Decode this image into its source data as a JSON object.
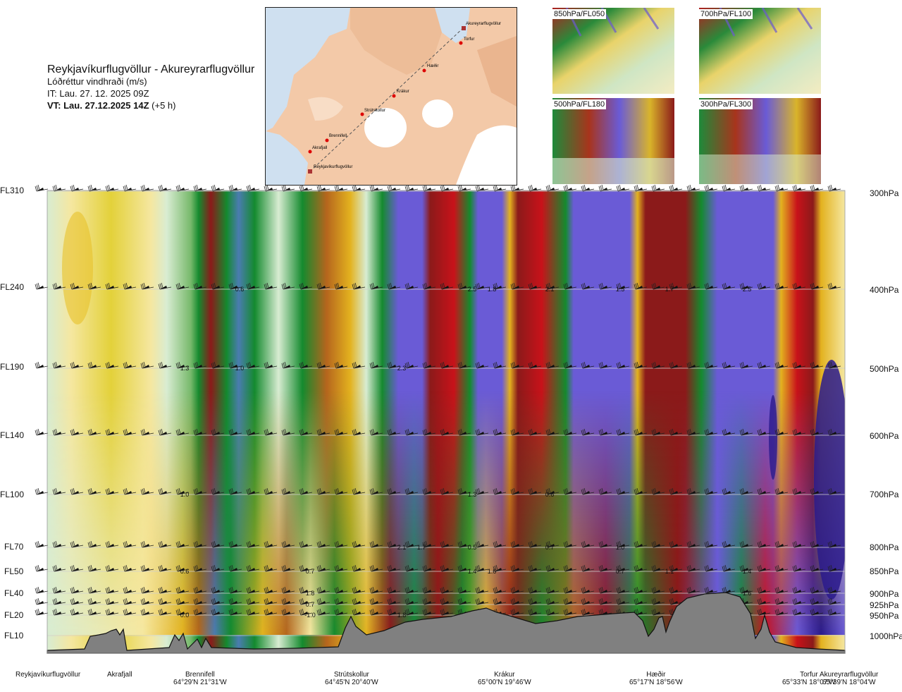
{
  "header": {
    "route_title": "Reykjavíkurflugvöllur - Akureyrarflugvöllur",
    "variable": "Lóðréttur vindhraði (m/s)",
    "issue_time": "IT: Lau. 27. 12. 2025 09Z",
    "valid_prefix": "VT: Lau. 27.12.2025 14Z",
    "valid_suffix": "(+5 h)"
  },
  "map": {
    "waypoints": [
      "Akureyrarflugvöllur",
      "Torfur",
      "Hæðir",
      "Krákur",
      "Strútskollur",
      "Brennifell",
      "Akrafjall",
      "Reykjavíkurflugvöllur"
    ]
  },
  "thumbnails": [
    {
      "label": "850hPa/FL050"
    },
    {
      "label": "700hPa/FL100"
    },
    {
      "label": "500hPa/FL180"
    },
    {
      "label": "300hPa/FL300"
    }
  ],
  "left_axis": [
    "FL310",
    "FL240",
    "FL190",
    "FL140",
    "FL100",
    "FL70",
    "FL50",
    "FL40",
    "FL20",
    "FL10"
  ],
  "right_axis": [
    "300hPa",
    "400hPa",
    "500hPa",
    "600hPa",
    "700hPa",
    "800hPa",
    "850hPa",
    "900hPa",
    "925hPa",
    "950hPa",
    "1000hPa"
  ],
  "bottom_axis": [
    {
      "name": "Reykjavíkurflugvöllur",
      "coord": ""
    },
    {
      "name": "Akrafjall",
      "coord": ""
    },
    {
      "name": "Brennifell",
      "coord": "64°29'N 21°31'W"
    },
    {
      "name": "Strútskollur",
      "coord": "64°45'N 20°40'W"
    },
    {
      "name": "Krákur",
      "coord": "65°00'N 19°46'W"
    },
    {
      "name": "Hæðir",
      "coord": "65°17'N 18°56'W"
    },
    {
      "name": "Torfur",
      "coord": "65°33'N 18°07'W"
    },
    {
      "name": "Akureyrarflugvöllur",
      "coord": "65°39'N 18°04'W"
    }
  ],
  "colors": {
    "strong_up": "#8b1a1a",
    "up": "#c8121a",
    "weak_up": "#b5651d",
    "slight_up": "#e3b21f",
    "neutral_pos": "#f5e7a0",
    "neutral_neg": "#d8ecd2",
    "slight_down": "#77b96b",
    "down": "#148a2e",
    "strong_down": "#4a7cb0",
    "very_down": "#6a5bd6",
    "extreme_down": "#2a1a8c",
    "terrain": "#808080"
  },
  "chart_data": {
    "type": "heatmap",
    "title": "Reykjavíkurflugvöllur - Akureyrarflugvöllur",
    "variable": "Lóðréttur vindhraði (m/s)",
    "x_categories": [
      "Reykjavíkurflugvöllur",
      "Akrafjall",
      "Brennifell",
      "Strútskollur",
      "Krákur",
      "Hæðir",
      "Torfur",
      "Akureyrarflugvöllur"
    ],
    "y_levels_hpa": [
      300,
      400,
      500,
      600,
      700,
      800,
      850,
      900,
      925,
      950,
      1000
    ],
    "y_flight_levels": [
      "FL310",
      "FL240",
      "FL190",
      "FL140",
      "FL100",
      "FL70",
      "FL50",
      "FL40",
      "FL20",
      "FL10"
    ],
    "contour_labels": [
      {
        "value": "0.6",
        "level_hpa": 400,
        "near": "Brennifell-Strútskollur"
      },
      {
        "value": "2.5",
        "level_hpa": 400,
        "near": "Krákur"
      },
      {
        "value": "1.8",
        "level_hpa": 400,
        "near": "Krákur"
      },
      {
        "value": "2.1",
        "level_hpa": 400,
        "near": "Krákur-Hæðir"
      },
      {
        "value": "1.5",
        "level_hpa": 400,
        "near": "Hæðir"
      },
      {
        "value": "1.7",
        "level_hpa": 400,
        "near": "Hæðir-Torfur"
      },
      {
        "value": "2.5",
        "level_hpa": 400,
        "near": "Torfur"
      },
      {
        "value": "1.3",
        "level_hpa": 500,
        "near": "Brennifell"
      },
      {
        "value": "1.0",
        "level_hpa": 500,
        "near": "Brennifell-Strútskollur"
      },
      {
        "value": "2.3",
        "level_hpa": 500,
        "near": "Strútskollur-Krákur"
      },
      {
        "value": "1.0",
        "level_hpa": 700,
        "near": "Brennifell"
      },
      {
        "value": "1.3",
        "level_hpa": 700,
        "near": "Krákur"
      },
      {
        "value": "0.6",
        "level_hpa": 700,
        "near": "Krákur-Hæðir"
      },
      {
        "value": "2.1",
        "level_hpa": 800,
        "near": "Strútskollur-Krákur"
      },
      {
        "value": "1.7",
        "level_hpa": 800,
        "near": "Strútskollur-Krákur"
      },
      {
        "value": "0.5",
        "level_hpa": 800,
        "near": "Krákur"
      },
      {
        "value": "0.7",
        "level_hpa": 800,
        "near": "Krákur-Hæðir"
      },
      {
        "value": "1.0",
        "level_hpa": 800,
        "near": "Hæðir"
      },
      {
        "value": "0.6",
        "level_hpa": 850,
        "near": "Brennifell"
      },
      {
        "value": "0.7",
        "level_hpa": 850,
        "near": "Strútskollur"
      },
      {
        "value": "1.4",
        "level_hpa": 850,
        "near": "Krákur"
      },
      {
        "value": "1.6",
        "level_hpa": 850,
        "near": "Krákur"
      },
      {
        "value": "0.7",
        "level_hpa": 850,
        "near": "Hæðir"
      },
      {
        "value": "1.1",
        "level_hpa": 850,
        "near": "Hæðir-Torfur"
      },
      {
        "value": "1.4",
        "level_hpa": 850,
        "near": "Torfur"
      },
      {
        "value": "1.8",
        "level_hpa": 900,
        "near": "Strútskollur"
      },
      {
        "value": "0.7",
        "level_hpa": 925,
        "near": "Strútskollur"
      },
      {
        "value": "1.6",
        "level_hpa": 900,
        "near": "Torfur"
      },
      {
        "value": "0.0",
        "level_hpa": 950,
        "near": "Brennifell"
      },
      {
        "value": "-1.0",
        "level_hpa": 950,
        "near": "Strútskollur"
      },
      {
        "value": "1.8",
        "level_hpa": 950,
        "near": "Strútskollur-Krákur"
      }
    ]
  }
}
